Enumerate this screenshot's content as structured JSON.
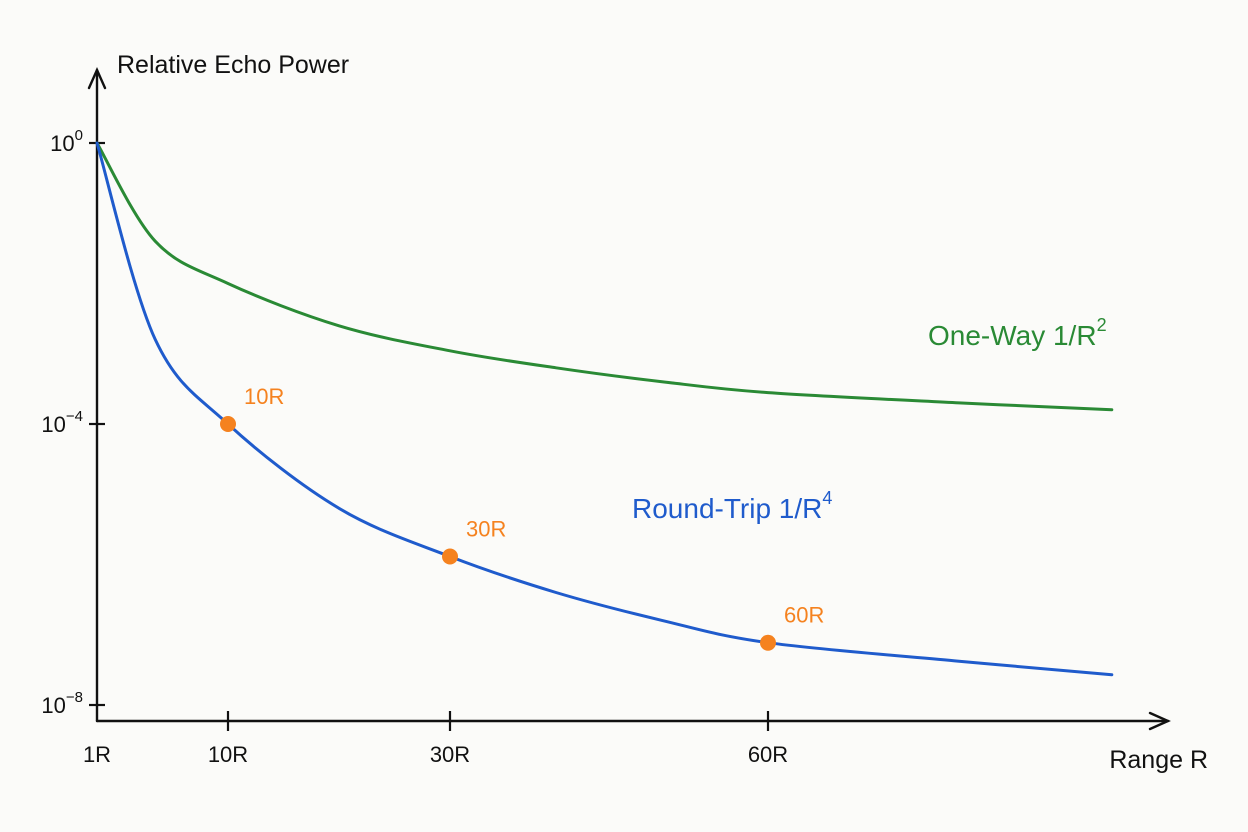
{
  "chart_data": {
    "type": "line",
    "title": "",
    "ylabel": "Relative Echo Power",
    "xlabel": "Range R",
    "y_scale": "log",
    "ylim": [
      1e-08,
      1
    ],
    "xlim": [
      1,
      80
    ],
    "grid": false,
    "y_ticks": [
      {
        "value": 1,
        "base": "10",
        "exp": "0"
      },
      {
        "value": 0.0001,
        "base": "10",
        "exp": "−4"
      },
      {
        "value": 1e-08,
        "base": "10",
        "exp": "−8"
      }
    ],
    "x_ticks": [
      {
        "value": 1,
        "label": "1R"
      },
      {
        "value": 10,
        "label": "10R"
      },
      {
        "value": 30,
        "label": "30R"
      },
      {
        "value": 60,
        "label": "60R"
      }
    ],
    "series": [
      {
        "id": "one-way",
        "label_text": "One-Way 1/R",
        "label_exp": "2",
        "color": "#2a8a35",
        "values": [
          {
            "x": 1,
            "y": 1
          },
          {
            "x": 5,
            "y": 0.04
          },
          {
            "x": 10,
            "y": 0.01
          },
          {
            "x": 20,
            "y": 0.0025
          },
          {
            "x": 30,
            "y": 0.0011
          },
          {
            "x": 40,
            "y": 0.00063
          },
          {
            "x": 50,
            "y": 0.0004
          },
          {
            "x": 60,
            "y": 0.00028
          },
          {
            "x": 70,
            "y": 0.0002
          },
          {
            "x": 78,
            "y": 0.00016
          }
        ]
      },
      {
        "id": "round-trip",
        "label_text": "Round-Trip 1/R",
        "label_exp": "4",
        "color": "#1f5bcc",
        "values": [
          {
            "x": 1,
            "y": 1
          },
          {
            "x": 5,
            "y": 0.0016
          },
          {
            "x": 10,
            "y": 0.0001
          },
          {
            "x": 20,
            "y": 6.3e-06
          },
          {
            "x": 30,
            "y": 1.3e-06
          },
          {
            "x": 40,
            "y": 4e-07
          },
          {
            "x": 50,
            "y": 1.6e-07
          },
          {
            "x": 60,
            "y": 7.7e-08
          },
          {
            "x": 70,
            "y": 4.2e-08
          },
          {
            "x": 78,
            "y": 2.7e-08
          }
        ]
      }
    ],
    "markers": {
      "color": "#f5821f",
      "points": [
        {
          "x": 10,
          "y": 0.0001,
          "label": "10R"
        },
        {
          "x": 30,
          "y": 1.3e-06,
          "label": "30R"
        },
        {
          "x": 60,
          "y": 7.7e-08,
          "label": "60R"
        }
      ]
    },
    "colors": {
      "axis": "#111111"
    }
  }
}
